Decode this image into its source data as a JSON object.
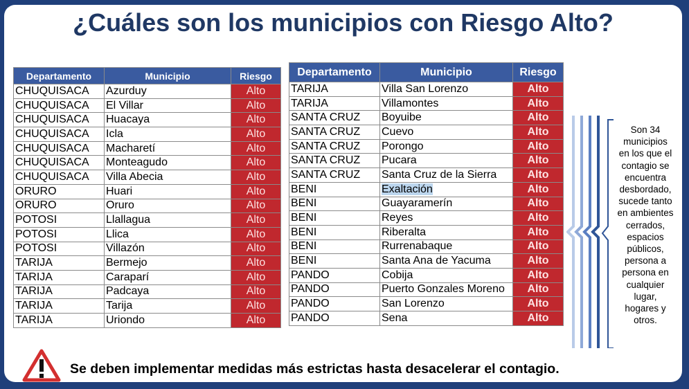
{
  "title": "¿Cuáles son los municipios con Riesgo Alto?",
  "colors": {
    "header": "#3a5ba0",
    "alto": "#c0282e",
    "title": "#1f3864",
    "frame": "#1f3f7a"
  },
  "table_left": {
    "headers": [
      "Departamento",
      "Municipio",
      "Riesgo"
    ],
    "rows": [
      [
        "CHUQUISACA",
        "Azurduy",
        "Alto"
      ],
      [
        "CHUQUISACA",
        "El Villar",
        "Alto"
      ],
      [
        "CHUQUISACA",
        "Huacaya",
        "Alto"
      ],
      [
        "CHUQUISACA",
        "Icla",
        "Alto"
      ],
      [
        "CHUQUISACA",
        "Macharetí",
        "Alto"
      ],
      [
        "CHUQUISACA",
        "Monteagudo",
        "Alto"
      ],
      [
        "CHUQUISACA",
        "Villa Abecia",
        "Alto"
      ],
      [
        "ORURO",
        "Huari",
        "Alto"
      ],
      [
        "ORURO",
        "Oruro",
        "Alto"
      ],
      [
        "POTOSI",
        "Llallagua",
        "Alto"
      ],
      [
        "POTOSI",
        "Llica",
        "Alto"
      ],
      [
        "POTOSI",
        "Villazón",
        "Alto"
      ],
      [
        "TARIJA",
        "Bermejo",
        "Alto"
      ],
      [
        "TARIJA",
        "Caraparí",
        "Alto"
      ],
      [
        "TARIJA",
        "Padcaya",
        "Alto"
      ],
      [
        "TARIJA",
        "Tarija",
        "Alto"
      ],
      [
        "TARIJA",
        "Uriondo",
        "Alto"
      ]
    ]
  },
  "table_right": {
    "headers": [
      "Departamento",
      "Municipio",
      "Riesgo"
    ],
    "rows": [
      [
        "TARIJA",
        "Villa San Lorenzo",
        "Alto"
      ],
      [
        "TARIJA",
        "Villamontes",
        "Alto"
      ],
      [
        "SANTA CRUZ",
        "Boyuibe",
        "Alto"
      ],
      [
        "SANTA CRUZ",
        "Cuevo",
        "Alto"
      ],
      [
        "SANTA CRUZ",
        "Porongo",
        "Alto"
      ],
      [
        "SANTA CRUZ",
        "Pucara",
        "Alto"
      ],
      [
        "SANTA CRUZ",
        "Santa Cruz de la Sierra",
        "Alto"
      ],
      [
        "BENI",
        "Exaltación",
        "Alto"
      ],
      [
        "BENI",
        "Guayaramerín",
        "Alto"
      ],
      [
        "BENI",
        "Reyes",
        "Alto"
      ],
      [
        "BENI",
        "Riberalta",
        "Alto"
      ],
      [
        "BENI",
        "Rurrenabaque",
        "Alto"
      ],
      [
        "BENI",
        "Santa Ana de Yacuma",
        "Alto"
      ],
      [
        "PANDO",
        "Cobija",
        "Alto"
      ],
      [
        "PANDO",
        "Puerto Gonzales Moreno",
        "Alto"
      ],
      [
        "PANDO",
        "San Lorenzo",
        "Alto"
      ],
      [
        "PANDO",
        "Sena",
        "Alto"
      ]
    ],
    "highlighted_row": 7
  },
  "note": {
    "lines": [
      "Son 34",
      "municipios",
      "en los que el",
      "contagio se",
      "encuentra",
      "desbordado,",
      "sucede tanto",
      "en ambientes",
      "cerrados,",
      "espacios",
      "públicos,",
      "persona a",
      "persona en",
      "cualquier",
      "lugar,",
      "hogares y",
      "otros."
    ]
  },
  "footer": {
    "text": "Se deben implementar medidas más estrictas hasta desacelerar el contagio.",
    "icon": "warning-icon"
  }
}
